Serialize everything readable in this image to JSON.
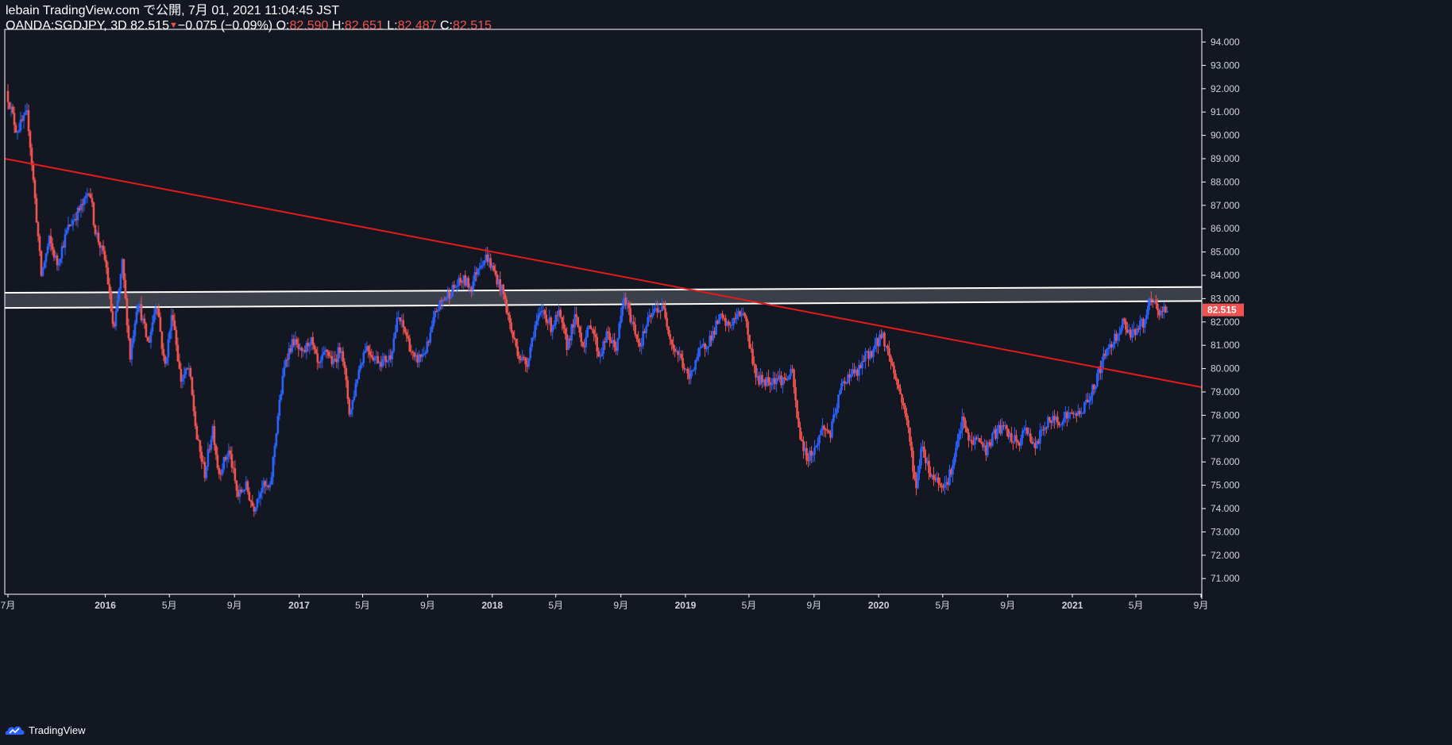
{
  "header": {
    "publish_line": "lebain TradingView.com で公開, 7月 01, 2021 11:04:45 JST",
    "symbol": "OANDA:SGDJPY, 3D",
    "last": "82.515",
    "change": "−0.075 (−0.09%)",
    "o_label": "O:",
    "o_value": "82.590",
    "h_label": "H:",
    "h_value": "82.651",
    "l_label": "L:",
    "l_value": "82.487",
    "c_label": "C:",
    "c_value": "82.515"
  },
  "footer": {
    "brand": "TradingView"
  },
  "colors": {
    "background": "#131722",
    "up": "#2962ff",
    "down": "#ef5350",
    "trendline": "#e31b1b",
    "zone_border": "#ffffff",
    "zone_fill": "#5d606b",
    "axis_text": "#d1d4dc",
    "price_badge": "#ef5350"
  },
  "chart_data": {
    "type": "candlestick",
    "symbol": "OANDA:SGDJPY",
    "timeframe": "3D",
    "x_range": [
      "2015-07-01",
      "2021-09-01"
    ],
    "ylim": [
      70.5,
      94.5
    ],
    "y_ticks": [
      "94.000",
      "93.000",
      "92.000",
      "91.000",
      "90.000",
      "89.000",
      "88.000",
      "87.000",
      "86.000",
      "85.000",
      "84.000",
      "83.000",
      "82.000",
      "81.000",
      "80.000",
      "79.000",
      "78.000",
      "77.000",
      "76.000",
      "75.000",
      "74.000",
      "73.000",
      "72.000",
      "71.000"
    ],
    "x_ticks": [
      {
        "date": "2015-07-01",
        "label": "7月"
      },
      {
        "date": "2016-01-01",
        "label": "2016"
      },
      {
        "date": "2016-05-01",
        "label": "5月"
      },
      {
        "date": "2016-09-01",
        "label": "9月"
      },
      {
        "date": "2017-01-01",
        "label": "2017"
      },
      {
        "date": "2017-05-01",
        "label": "5月"
      },
      {
        "date": "2017-09-01",
        "label": "9月"
      },
      {
        "date": "2018-01-01",
        "label": "2018"
      },
      {
        "date": "2018-05-01",
        "label": "5月"
      },
      {
        "date": "2018-09-01",
        "label": "9月"
      },
      {
        "date": "2019-01-01",
        "label": "2019"
      },
      {
        "date": "2019-05-01",
        "label": "5月"
      },
      {
        "date": "2019-09-01",
        "label": "9月"
      },
      {
        "date": "2020-01-01",
        "label": "2020"
      },
      {
        "date": "2020-05-01",
        "label": "5月"
      },
      {
        "date": "2020-09-01",
        "label": "9月"
      },
      {
        "date": "2021-01-01",
        "label": "2021"
      },
      {
        "date": "2021-05-01",
        "label": "5月"
      },
      {
        "date": "2021-09-01",
        "label": "9月"
      }
    ],
    "last_price": "82.515",
    "price_path": [
      [
        "2015-07-01",
        91.9
      ],
      [
        "2015-07-20",
        90.2
      ],
      [
        "2015-08-10",
        90.9
      ],
      [
        "2015-08-25",
        87.0
      ],
      [
        "2015-09-05",
        84.0
      ],
      [
        "2015-09-20",
        85.5
      ],
      [
        "2015-10-05",
        84.5
      ],
      [
        "2015-10-25",
        86.0
      ],
      [
        "2015-11-10",
        86.6
      ],
      [
        "2015-11-25",
        87.1
      ],
      [
        "2015-12-05",
        87.8
      ],
      [
        "2015-12-15",
        86.0
      ],
      [
        "2016-01-05",
        84.5
      ],
      [
        "2016-01-20",
        81.5
      ],
      [
        "2016-02-05",
        84.5
      ],
      [
        "2016-02-20",
        80.5
      ],
      [
        "2016-03-05",
        83.0
      ],
      [
        "2016-03-25",
        81.0
      ],
      [
        "2016-04-10",
        83.0
      ],
      [
        "2016-04-25",
        80.0
      ],
      [
        "2016-05-10",
        82.5
      ],
      [
        "2016-05-25",
        79.5
      ],
      [
        "2016-06-10",
        80.0
      ],
      [
        "2016-06-25",
        77.0
      ],
      [
        "2016-07-10",
        75.5
      ],
      [
        "2016-07-25",
        77.5
      ],
      [
        "2016-08-05",
        75.5
      ],
      [
        "2016-08-25",
        76.5
      ],
      [
        "2016-09-10",
        74.5
      ],
      [
        "2016-09-25",
        75.0
      ],
      [
        "2016-10-10",
        74.0
      ],
      [
        "2016-10-25",
        75.0
      ],
      [
        "2016-11-10",
        74.8
      ],
      [
        "2016-11-25",
        78.0
      ],
      [
        "2016-12-10",
        80.5
      ],
      [
        "2016-12-25",
        81.2
      ],
      [
        "2017-01-10",
        80.5
      ],
      [
        "2017-01-25",
        81.3
      ],
      [
        "2017-02-10",
        80.0
      ],
      [
        "2017-02-25",
        80.8
      ],
      [
        "2017-03-10",
        80.2
      ],
      [
        "2017-03-25",
        81.0
      ],
      [
        "2017-04-10",
        78.0
      ],
      [
        "2017-04-25",
        79.8
      ],
      [
        "2017-05-10",
        81.0
      ],
      [
        "2017-05-25",
        80.5
      ],
      [
        "2017-06-10",
        80.3
      ],
      [
        "2017-06-25",
        80.5
      ],
      [
        "2017-07-10",
        82.2
      ],
      [
        "2017-07-25",
        81.5
      ],
      [
        "2017-08-10",
        80.3
      ],
      [
        "2017-08-25",
        80.6
      ],
      [
        "2017-09-05",
        81.0
      ],
      [
        "2017-09-20",
        82.5
      ],
      [
        "2017-10-05",
        83.0
      ],
      [
        "2017-10-25",
        83.5
      ],
      [
        "2017-11-10",
        83.8
      ],
      [
        "2017-11-25",
        83.5
      ],
      [
        "2017-12-10",
        84.5
      ],
      [
        "2017-12-25",
        84.8
      ],
      [
        "2018-01-10",
        84.0
      ],
      [
        "2018-01-25",
        83.2
      ],
      [
        "2018-02-10",
        81.5
      ],
      [
        "2018-02-25",
        80.5
      ],
      [
        "2018-03-10",
        80.2
      ],
      [
        "2018-03-25",
        81.8
      ],
      [
        "2018-04-10",
        82.5
      ],
      [
        "2018-04-25",
        81.8
      ],
      [
        "2018-05-10",
        82.3
      ],
      [
        "2018-05-25",
        81.0
      ],
      [
        "2018-06-10",
        82.2
      ],
      [
        "2018-06-25",
        81.0
      ],
      [
        "2018-07-10",
        82.0
      ],
      [
        "2018-07-25",
        80.5
      ],
      [
        "2018-08-10",
        81.5
      ],
      [
        "2018-08-25",
        80.8
      ],
      [
        "2018-09-10",
        83.0
      ],
      [
        "2018-09-25",
        82.0
      ],
      [
        "2018-10-10",
        81.0
      ],
      [
        "2018-10-25",
        82.0
      ],
      [
        "2018-11-10",
        82.6
      ],
      [
        "2018-11-25",
        82.5
      ],
      [
        "2018-12-10",
        81.0
      ],
      [
        "2018-12-25",
        80.5
      ],
      [
        "2019-01-10",
        79.5
      ],
      [
        "2019-01-25",
        80.5
      ],
      [
        "2019-02-10",
        81.0
      ],
      [
        "2019-02-25",
        81.5
      ],
      [
        "2019-03-10",
        82.2
      ],
      [
        "2019-03-25",
        81.8
      ],
      [
        "2019-04-10",
        82.2
      ],
      [
        "2019-04-25",
        82.5
      ],
      [
        "2019-05-05",
        81.0
      ],
      [
        "2019-05-20",
        79.5
      ],
      [
        "2019-06-10",
        79.5
      ],
      [
        "2019-06-25",
        79.6
      ],
      [
        "2019-07-10",
        79.5
      ],
      [
        "2019-07-25",
        79.8
      ],
      [
        "2019-08-05",
        77.5
      ],
      [
        "2019-08-20",
        76.2
      ],
      [
        "2019-09-05",
        76.5
      ],
      [
        "2019-09-20",
        77.5
      ],
      [
        "2019-10-05",
        77.2
      ],
      [
        "2019-10-25",
        79.2
      ],
      [
        "2019-11-10",
        79.8
      ],
      [
        "2019-11-25",
        79.8
      ],
      [
        "2019-12-10",
        80.5
      ],
      [
        "2019-12-25",
        80.8
      ],
      [
        "2020-01-10",
        81.5
      ],
      [
        "2020-01-25",
        80.5
      ],
      [
        "2020-02-10",
        79.2
      ],
      [
        "2020-02-25",
        78.0
      ],
      [
        "2020-03-05",
        76.5
      ],
      [
        "2020-03-15",
        74.8
      ],
      [
        "2020-03-25",
        76.8
      ],
      [
        "2020-04-10",
        75.5
      ],
      [
        "2020-04-25",
        75.2
      ],
      [
        "2020-05-10",
        75.0
      ],
      [
        "2020-05-25",
        76.0
      ],
      [
        "2020-06-10",
        77.8
      ],
      [
        "2020-06-25",
        76.8
      ],
      [
        "2020-07-10",
        77.0
      ],
      [
        "2020-07-25",
        76.5
      ],
      [
        "2020-08-10",
        77.2
      ],
      [
        "2020-08-25",
        77.5
      ],
      [
        "2020-09-10",
        77.0
      ],
      [
        "2020-09-25",
        76.8
      ],
      [
        "2020-10-10",
        77.5
      ],
      [
        "2020-10-25",
        76.5
      ],
      [
        "2020-11-10",
        77.5
      ],
      [
        "2020-11-25",
        77.8
      ],
      [
        "2020-12-10",
        77.8
      ],
      [
        "2020-12-25",
        78.0
      ],
      [
        "2021-01-10",
        78.0
      ],
      [
        "2021-01-25",
        78.3
      ],
      [
        "2021-02-10",
        79.0
      ],
      [
        "2021-02-25",
        80.0
      ],
      [
        "2021-03-10",
        80.8
      ],
      [
        "2021-03-25",
        81.3
      ],
      [
        "2021-04-10",
        82.0
      ],
      [
        "2021-04-25",
        81.5
      ],
      [
        "2021-05-10",
        81.8
      ],
      [
        "2021-05-20",
        82.0
      ],
      [
        "2021-06-01",
        82.9
      ],
      [
        "2021-06-10",
        82.7
      ],
      [
        "2021-06-18",
        82.3
      ],
      [
        "2021-06-25",
        82.5
      ],
      [
        "2021-07-01",
        82.515
      ]
    ],
    "annotations": {
      "trendline": {
        "start": [
          "2015-07-01",
          89.0
        ],
        "end": [
          "2021-09-01",
          79.2
        ]
      },
      "resistance_zone": {
        "lower": {
          "start": [
            "2015-07-01",
            82.6
          ],
          "end": [
            "2021-09-01",
            82.9
          ]
        },
        "upper": {
          "start": [
            "2015-07-01",
            83.25
          ],
          "end": [
            "2021-09-01",
            83.5
          ]
        }
      }
    }
  }
}
